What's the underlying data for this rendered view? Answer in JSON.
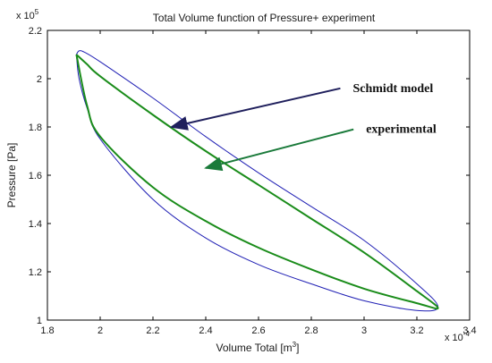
{
  "chart_data": {
    "type": "line",
    "title": "Total Volume function of Pressure+ experiment",
    "xlabel": "Volume Total [m",
    "xlabel_sup": "3",
    "xlabel_end": "]",
    "ylabel": "Pressure [Pa]",
    "x_exponent_base": "x 10",
    "x_exponent_power": "-4",
    "y_exponent_base": "x 10",
    "y_exponent_power": "5",
    "xlim": [
      1.8,
      3.4
    ],
    "ylim": [
      1.0,
      2.2
    ],
    "x_ticks": [
      1.8,
      2,
      2.2,
      2.4,
      2.6,
      2.8,
      3,
      3.2,
      3.4
    ],
    "x_tick_labels": [
      "1.8",
      "2",
      "2.2",
      "2.4",
      "2.6",
      "2.8",
      "3",
      "3.2",
      "3.4"
    ],
    "y_ticks": [
      1,
      1.2,
      1.4,
      1.6,
      1.8,
      2,
      2.2
    ],
    "y_tick_labels": [
      "1",
      "1.2",
      "1.4",
      "1.6",
      "1.8",
      "2",
      "2.2"
    ],
    "grid": false,
    "series": [
      {
        "name": "Schmidt model",
        "color": "#1f1fb4",
        "upper": [
          [
            1.91,
            2.1
          ],
          [
            1.92,
            2.115
          ],
          [
            1.94,
            2.11
          ],
          [
            2.0,
            2.07
          ],
          [
            2.2,
            1.92
          ],
          [
            2.4,
            1.76
          ],
          [
            2.6,
            1.61
          ],
          [
            2.8,
            1.47
          ],
          [
            3.0,
            1.33
          ],
          [
            3.2,
            1.15
          ],
          [
            3.28,
            1.055
          ]
        ],
        "lower": [
          [
            3.28,
            1.055
          ],
          [
            3.2,
            1.04
          ],
          [
            3.0,
            1.08
          ],
          [
            2.8,
            1.15
          ],
          [
            2.6,
            1.23
          ],
          [
            2.4,
            1.34
          ],
          [
            2.2,
            1.5
          ],
          [
            2.0,
            1.75
          ],
          [
            1.95,
            1.88
          ],
          [
            1.92,
            2.0
          ],
          [
            1.91,
            2.1
          ]
        ]
      },
      {
        "name": "experimental",
        "color": "#1a8c1a",
        "upper": [
          [
            1.91,
            2.1
          ],
          [
            1.95,
            2.06
          ],
          [
            2.0,
            2.01
          ],
          [
            2.2,
            1.85
          ],
          [
            2.4,
            1.7
          ],
          [
            2.6,
            1.56
          ],
          [
            2.8,
            1.42
          ],
          [
            3.0,
            1.28
          ],
          [
            3.2,
            1.12
          ],
          [
            3.28,
            1.05
          ]
        ],
        "lower": [
          [
            3.28,
            1.05
          ],
          [
            3.2,
            1.07
          ],
          [
            3.0,
            1.13
          ],
          [
            2.8,
            1.21
          ],
          [
            2.6,
            1.3
          ],
          [
            2.4,
            1.41
          ],
          [
            2.2,
            1.55
          ],
          [
            2.0,
            1.76
          ],
          [
            1.95,
            1.89
          ],
          [
            1.91,
            2.1
          ]
        ]
      }
    ],
    "annotations": [
      {
        "text": "Schmidt model",
        "color": "#1f1f5c",
        "arrow_from": [
          2.91,
          1.96
        ],
        "arrow_to": [
          2.27,
          1.8
        ]
      },
      {
        "text": "experimental",
        "color": "#1a7a3a",
        "arrow_from": [
          2.96,
          1.79
        ],
        "arrow_to": [
          2.4,
          1.63
        ]
      }
    ]
  }
}
